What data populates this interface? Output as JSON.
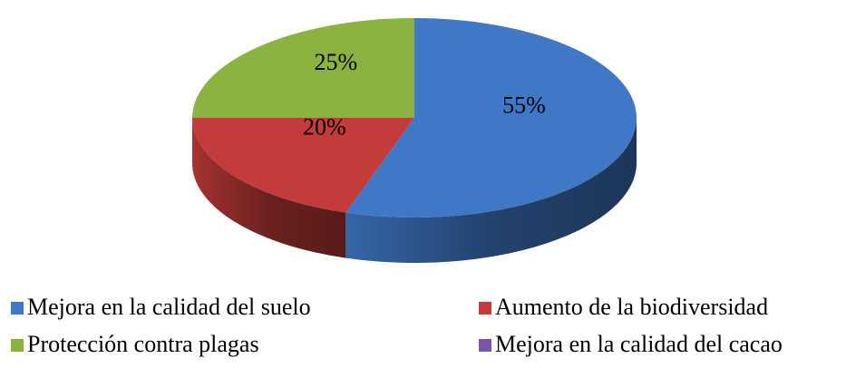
{
  "chart_data": {
    "type": "pie",
    "categories": [
      "Mejora en la calidad del suelo",
      "Aumento de la biodiversidad",
      "Protección contra plagas",
      "Mejora en la calidad del cacao"
    ],
    "values": [
      55,
      20,
      25,
      0
    ],
    "value_labels": [
      "55%",
      "20%",
      "25%",
      null
    ],
    "colors": [
      "#3f78c6",
      "#c33b3a",
      "#8cb23f",
      "#7b56a5"
    ],
    "legend": "bottom"
  }
}
